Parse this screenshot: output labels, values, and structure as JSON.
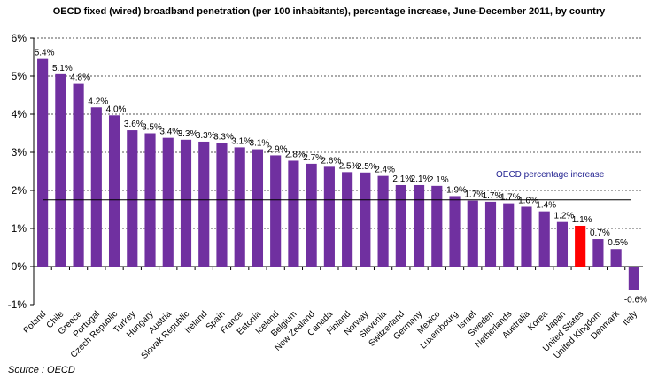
{
  "chart_data": {
    "type": "bar",
    "title": "OECD fixed (wired) broadband penetration (per 100 inhabitants),  percentage increase, June-December  2011, by country",
    "source": "Source : OECD",
    "xlabel": "",
    "ylabel": "",
    "ylim": [
      -1,
      6
    ],
    "yticks": [
      -1,
      0,
      1,
      2,
      3,
      4,
      5,
      6
    ],
    "ytick_labels": [
      "-1%",
      "0%",
      "1%",
      "2%",
      "3%",
      "4%",
      "5%",
      "6%"
    ],
    "grid": true,
    "categories": [
      "Poland",
      "Chile",
      "Greece",
      "Portugal",
      "Czech Republic",
      "Turkey",
      "Hungary",
      "Austria",
      "Slovak Republic",
      "Ireland",
      "Spain",
      "France",
      "Estonia",
      "Iceland",
      "Belgium",
      "New Zealand",
      "Canada",
      "Finland",
      "Norway",
      "Slovenia",
      "Switzerland",
      "Germany",
      "Mexico",
      "Luxembourg",
      "Israel",
      "Sweden",
      "Netherlands",
      "Australia",
      "Korea",
      "Japan",
      "United States",
      "United Kingdom",
      "Denmark",
      "Italy"
    ],
    "values": [
      5.45,
      5.05,
      4.8,
      4.18,
      3.97,
      3.58,
      3.5,
      3.38,
      3.33,
      3.28,
      3.25,
      3.13,
      3.08,
      2.92,
      2.78,
      2.7,
      2.62,
      2.48,
      2.47,
      2.38,
      2.14,
      2.14,
      2.12,
      1.85,
      1.73,
      1.7,
      1.66,
      1.57,
      1.45,
      1.17,
      1.07,
      0.72,
      0.46,
      -0.62
    ],
    "data_labels": [
      "5.4%",
      "5.1%",
      "4.8%",
      "4.2%",
      "4.0%",
      "3.6%",
      "3.5%",
      "3.4%",
      "3.3%",
      "3.3%",
      "3.3%",
      "3.1%",
      "3.1%",
      "2.9%",
      "2.8%",
      "2.7%",
      "2.6%",
      "2.5%",
      "2.5%",
      "2.4%",
      "2.1%",
      "2.1%",
      "2.1%",
      "1.9%",
      "1.7%",
      "1.7%",
      "1.7%",
      "1.6%",
      "1.4%",
      "1.2%",
      "1.1%",
      "0.7%",
      "0.5%",
      "-0.6%"
    ],
    "bar_color": "#7030A0",
    "highlight_color": "#FF0000",
    "highlight_category": "United States",
    "reference_line": {
      "label": "OECD percentage increase",
      "value": 1.75,
      "color": "#000000",
      "label_color": "#1F1F8F"
    }
  }
}
